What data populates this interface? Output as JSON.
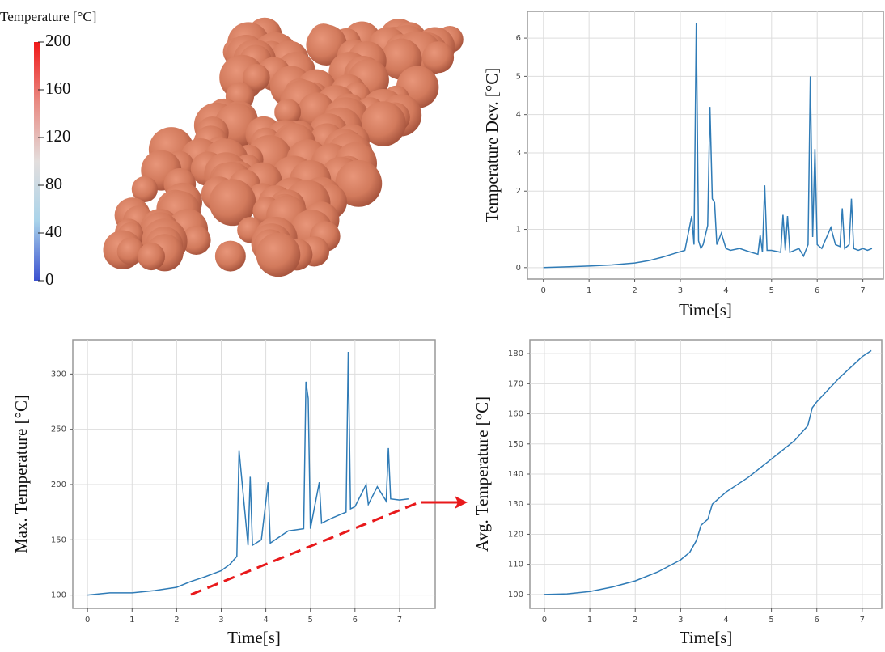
{
  "chart_data": [
    {
      "type": "colorbar",
      "title": "Temperature [°C]",
      "lim": [
        0,
        200
      ],
      "ticks": [
        0,
        40,
        80,
        120,
        160,
        200
      ],
      "colors": [
        "#3a50d0",
        "#a9d3ea",
        "#e3dedd",
        "#e98a82",
        "#f01818"
      ]
    },
    {
      "type": "line",
      "ylabel": "Temperature Dev. [°C]",
      "xlabel": "Time[s]",
      "color": "#2f7bb6",
      "grid": true,
      "xlim": [
        -0.35,
        7.45
      ],
      "xticks": [
        0,
        1,
        2,
        3,
        4,
        5,
        6,
        7
      ],
      "ylim": [
        -0.3,
        6.7
      ],
      "yticks": [
        0,
        1,
        2,
        3,
        4,
        5,
        6
      ],
      "x": [
        0,
        0.5,
        1,
        1.5,
        2,
        2.3,
        2.6,
        2.9,
        3.1,
        3.25,
        3.3,
        3.35,
        3.4,
        3.45,
        3.5,
        3.6,
        3.65,
        3.7,
        3.75,
        3.8,
        3.9,
        4.0,
        4.1,
        4.3,
        4.5,
        4.7,
        4.75,
        4.8,
        4.85,
        4.9,
        5.0,
        5.2,
        5.25,
        5.3,
        5.35,
        5.4,
        5.6,
        5.7,
        5.8,
        5.85,
        5.9,
        5.95,
        6.0,
        6.1,
        6.3,
        6.4,
        6.5,
        6.55,
        6.6,
        6.7,
        6.75,
        6.8,
        6.9,
        7.0,
        7.1,
        7.2
      ],
      "values": [
        0,
        0.02,
        0.04,
        0.07,
        0.12,
        0.18,
        0.27,
        0.38,
        0.45,
        1.35,
        0.6,
        6.4,
        0.7,
        0.5,
        0.6,
        1.1,
        4.2,
        1.8,
        1.7,
        0.6,
        0.9,
        0.5,
        0.45,
        0.5,
        0.42,
        0.35,
        0.85,
        0.4,
        2.15,
        0.45,
        0.45,
        0.4,
        1.38,
        0.45,
        1.35,
        0.4,
        0.5,
        0.3,
        0.6,
        5.0,
        0.8,
        3.1,
        0.6,
        0.5,
        1.05,
        0.6,
        0.55,
        1.55,
        0.5,
        0.6,
        1.8,
        0.5,
        0.45,
        0.5,
        0.45,
        0.5
      ]
    },
    {
      "type": "line",
      "ylabel": "Max. Temperature [°C]",
      "xlabel": "Time[s]",
      "color": "#2f7bb6",
      "grid": true,
      "xlim": [
        -0.33,
        7.8
      ],
      "xticks": [
        0,
        1,
        2,
        3,
        4,
        5,
        6,
        7
      ],
      "ylim": [
        88,
        331
      ],
      "yticks": [
        100,
        150,
        200,
        250,
        300
      ],
      "x": [
        0,
        0.5,
        1,
        1.5,
        2,
        2.3,
        2.6,
        3.0,
        3.2,
        3.35,
        3.4,
        3.6,
        3.65,
        3.7,
        3.9,
        4.05,
        4.1,
        4.5,
        4.85,
        4.9,
        4.95,
        5.0,
        5.2,
        5.25,
        5.5,
        5.8,
        5.85,
        5.9,
        6.0,
        6.25,
        6.3,
        6.5,
        6.7,
        6.75,
        6.8,
        7.0,
        7.2
      ],
      "values": [
        100,
        102,
        102,
        104,
        107,
        112,
        116,
        122,
        128,
        135,
        231,
        145,
        207,
        145,
        150,
        202,
        147,
        158,
        160,
        293,
        278,
        160,
        202,
        165,
        170,
        175,
        320,
        178,
        180,
        200,
        182,
        198,
        185,
        233,
        187,
        186,
        187
      ]
    },
    {
      "type": "line",
      "ylabel": "Avg. Temperature [°C]",
      "xlabel": "Time[s]",
      "color": "#2f7bb6",
      "grid": true,
      "xlim": [
        -0.32,
        7.43
      ],
      "xticks": [
        0,
        1,
        2,
        3,
        4,
        5,
        6,
        7
      ],
      "ylim": [
        95.4,
        184.6
      ],
      "yticks": [
        100,
        110,
        120,
        130,
        140,
        150,
        160,
        170,
        180
      ],
      "x": [
        0,
        0.5,
        1,
        1.5,
        2,
        2.5,
        3,
        3.2,
        3.35,
        3.45,
        3.6,
        3.7,
        4,
        4.5,
        5,
        5.5,
        5.8,
        5.9,
        6,
        6.5,
        7,
        7.2
      ],
      "values": [
        100,
        100.2,
        101,
        102.5,
        104.5,
        107.5,
        111.5,
        114,
        118,
        123,
        125,
        130,
        134,
        139,
        145,
        151,
        156,
        162,
        164,
        172,
        179,
        181
      ]
    }
  ]
}
